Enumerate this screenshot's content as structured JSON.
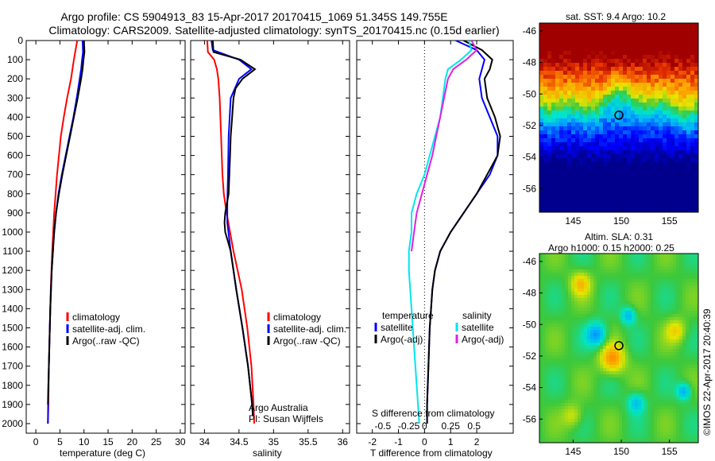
{
  "header": {
    "line1": "Argo profile: CS 5904913_83 15-Apr-2017 20170415_1069 51.345S 149.755E",
    "line2": "Climatology: CARS2009. Satellite-adjusted climatology: synTS_20170415.nc (0.15d earlier)"
  },
  "colors": {
    "climatology": "#ff0000",
    "satellite": "#0000ff",
    "argo": "#000000",
    "satellite_sal": "#00e5ee",
    "argo_sal": "#e020e0"
  },
  "chart_data": [
    {
      "type": "line",
      "name": "temperature-panel",
      "xlabel": "temperature (deg C)",
      "xlim": [
        -2,
        31
      ],
      "ylim": [
        2050,
        0
      ],
      "xticks": [
        0,
        5,
        10,
        15,
        20,
        25,
        30
      ],
      "yticks": [
        0,
        100,
        200,
        300,
        400,
        500,
        600,
        700,
        800,
        900,
        1000,
        1100,
        1200,
        1300,
        1400,
        1500,
        1600,
        1700,
        1800,
        1900,
        2000
      ],
      "legend": [
        "climatology",
        "satellite-adj. clim.",
        "Argo(..raw -QC)"
      ],
      "legend_position": "lower-right",
      "series": [
        {
          "name": "climatology",
          "color": "#ff0000",
          "depth": [
            0,
            100,
            200,
            300,
            400,
            500,
            700,
            900,
            1100,
            1300,
            1500,
            1700,
            1900,
            2000
          ],
          "values": [
            8.6,
            7.9,
            7.3,
            6.5,
            5.8,
            5.2,
            4.4,
            3.8,
            3.4,
            3.1,
            2.9,
            2.7,
            2.6,
            2.5
          ]
        },
        {
          "name": "satellite-adj. clim.",
          "color": "#0000ff",
          "depth": [
            0,
            60,
            100,
            150,
            200,
            300,
            400,
            500,
            600,
            700,
            800,
            900,
            1000,
            1200,
            1400,
            1600,
            1800,
            2000
          ],
          "values": [
            9.7,
            9.8,
            9.6,
            9.4,
            9.1,
            8.5,
            7.8,
            7.0,
            6.2,
            5.4,
            4.7,
            4.2,
            3.8,
            3.3,
            3.0,
            2.8,
            2.6,
            2.5
          ]
        },
        {
          "name": "Argo(..raw -QC)",
          "color": "#000000",
          "depth": [
            0,
            60,
            100,
            150,
            200,
            300,
            400,
            500,
            600,
            700,
            800,
            900,
            1000,
            1200,
            1400,
            1600,
            1800,
            1900
          ],
          "values": [
            10.0,
            10.1,
            9.9,
            9.7,
            9.4,
            8.7,
            7.9,
            7.1,
            6.3,
            5.5,
            4.8,
            4.2,
            3.8,
            3.3,
            3.0,
            2.8,
            2.6,
            2.5
          ]
        }
      ]
    },
    {
      "type": "line",
      "name": "salinity-panel",
      "xlabel": "salinity",
      "xlim": [
        33.8,
        36.1
      ],
      "ylim": [
        2050,
        0
      ],
      "xticks": [
        34,
        34.5,
        35,
        35.5,
        36
      ],
      "legend": [
        "climatology",
        "satellite-adj. clim.",
        "Argo(..raw -QC)"
      ],
      "legend_position": "lower-right",
      "annotation": [
        "Argo Australia",
        "PI: Susan Wijffels"
      ],
      "series": [
        {
          "name": "climatology",
          "color": "#ff0000",
          "depth": [
            0,
            60,
            100,
            150,
            200,
            300,
            500,
            700,
            800,
            900,
            1000,
            1100,
            1200,
            1300,
            1500,
            1700,
            1900,
            2000
          ],
          "values": [
            34.04,
            34.05,
            34.14,
            34.18,
            34.2,
            34.22,
            34.24,
            34.26,
            34.28,
            34.32,
            34.37,
            34.42,
            34.48,
            34.54,
            34.62,
            34.68,
            34.71,
            34.72
          ]
        },
        {
          "name": "satellite-adj. clim.",
          "color": "#0000ff",
          "depth": [
            0,
            50,
            100,
            150,
            200,
            300,
            500,
            700,
            850,
            950,
            1100,
            1300,
            1500,
            1700,
            1900,
            1960
          ],
          "values": [
            34.1,
            34.12,
            34.5,
            34.68,
            34.5,
            34.38,
            34.35,
            34.34,
            34.33,
            34.33,
            34.38,
            34.46,
            34.55,
            34.63,
            34.69,
            34.7
          ]
        },
        {
          "name": "Argo(..raw -QC)",
          "color": "#000000",
          "depth": [
            0,
            60,
            100,
            150,
            200,
            250,
            300,
            400,
            500,
            600,
            700,
            800,
            900,
            950,
            1000,
            1050,
            1100,
            1300,
            1500,
            1700,
            1900,
            1960
          ],
          "values": [
            34.12,
            34.13,
            34.52,
            34.73,
            34.55,
            34.45,
            34.42,
            34.4,
            34.38,
            34.37,
            34.36,
            34.35,
            34.3,
            34.29,
            34.3,
            34.34,
            34.38,
            34.46,
            34.55,
            34.63,
            34.69,
            34.7
          ]
        }
      ]
    },
    {
      "type": "line",
      "name": "difference-panel",
      "xlabel": "T difference from climatology",
      "xlabel_top": "S difference from climatology",
      "xlim": [
        -2.6,
        3.4
      ],
      "ylim": [
        2050,
        0
      ],
      "xticks": [
        -2,
        -1,
        0,
        1,
        2
      ],
      "sticks_labels": [
        "-0.5",
        "-0.25",
        "0",
        "0.25",
        "0.5"
      ],
      "legend_temperature": {
        "title": "temperature",
        "items": [
          "satellite",
          "Argo(-adj)"
        ]
      },
      "legend_salinity": {
        "title": "salinity",
        "items": [
          "satellite",
          "Argo(-adj)"
        ]
      },
      "series": [
        {
          "name": "temperature satellite",
          "color": "#0000ff",
          "depth": [
            0,
            50,
            100,
            150,
            200,
            300,
            400,
            500,
            600,
            700,
            800,
            900,
            1000,
            1100,
            1200,
            1300,
            1400,
            1500,
            1700,
            1900,
            2000
          ],
          "values": [
            1.2,
            2.0,
            2.3,
            2.2,
            2.1,
            2.2,
            2.5,
            2.8,
            2.8,
            2.5,
            2.0,
            1.5,
            1.0,
            0.6,
            0.4,
            0.3,
            0.25,
            0.2,
            0.15,
            0.1,
            0.1
          ]
        },
        {
          "name": "temperature Argo(-adj)",
          "color": "#000000",
          "depth": [
            0,
            50,
            100,
            150,
            200,
            300,
            400,
            500,
            600,
            700,
            800,
            900,
            1000,
            1100,
            1200,
            1300,
            1400,
            1500,
            1700,
            1900,
            2000
          ],
          "values": [
            1.5,
            2.2,
            2.6,
            2.5,
            2.3,
            2.4,
            2.7,
            2.9,
            2.8,
            2.4,
            2.0,
            1.5,
            1.0,
            0.6,
            0.4,
            0.3,
            0.25,
            0.2,
            0.15,
            0.1,
            0.1
          ]
        },
        {
          "name": "salinity satellite",
          "color": "#00e5ee",
          "depth": [
            0,
            50,
            100,
            150,
            200,
            300,
            400,
            500,
            600,
            700,
            800,
            900,
            1000,
            1100,
            1200,
            1400,
            1600,
            1800,
            2000
          ],
          "values": [
            1.7,
            1.8,
            1.4,
            0.9,
            0.8,
            0.7,
            0.6,
            0.4,
            0.2,
            0.0,
            -0.3,
            -0.5,
            -0.5,
            -0.6,
            -0.6,
            -0.5,
            -0.4,
            -0.3,
            -0.2
          ]
        },
        {
          "name": "salinity Argo(-adj)",
          "color": "#e020e0",
          "depth": [
            0,
            50,
            100,
            150,
            200,
            300,
            400,
            500,
            600,
            700,
            800,
            900,
            1000,
            1100
          ],
          "values": [
            1.8,
            2.0,
            1.6,
            1.1,
            0.9,
            0.75,
            0.6,
            0.45,
            0.3,
            0.1,
            -0.1,
            -0.3,
            -0.4,
            -0.5
          ]
        }
      ]
    },
    {
      "type": "heatmap",
      "name": "sst-map",
      "title": "sat. SST: 9.4 Argo: 10.2",
      "xticks": [
        145,
        150,
        155
      ],
      "yticks": [
        -46,
        -48,
        -50,
        -52,
        -54,
        -56
      ],
      "marker": {
        "lon": 149.755,
        "lat": -51.345
      }
    },
    {
      "type": "heatmap",
      "name": "sla-map",
      "title_line1": "Altim. SLA: 0.31",
      "title_line2": "Argo h1000: 0.15 h2000: 0.25",
      "xticks": [
        145,
        150,
        155
      ],
      "yticks": [
        -46,
        -48,
        -50,
        -52,
        -54,
        -56
      ],
      "marker": {
        "lon": 149.755,
        "lat": -51.345
      }
    }
  ],
  "footer": {
    "credit": "©IMOS 22-Apr-2017 20:40:39"
  }
}
